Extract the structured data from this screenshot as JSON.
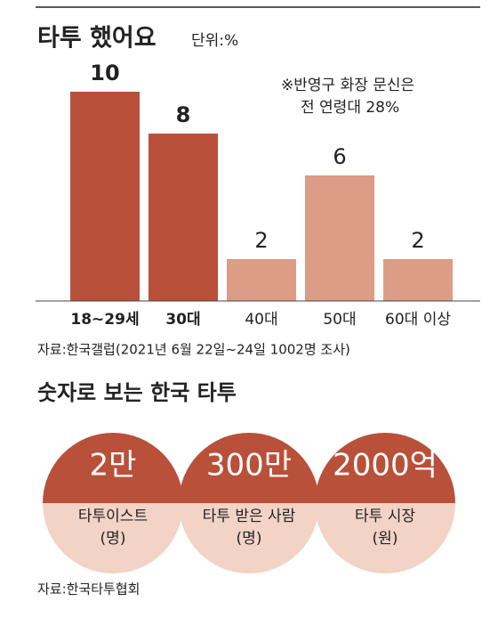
{
  "chart_data": {
    "type": "bar",
    "title": "타투 했어요",
    "unit": "단위:%",
    "annotation": [
      "※반영구 화장 문신은",
      "전 연령대 28%"
    ],
    "categories": [
      "18~29세",
      "30대",
      "40대",
      "50대",
      "60대 이상"
    ],
    "values": [
      10,
      8,
      2,
      6,
      2
    ],
    "colors": [
      "#b9503a",
      "#b9503a",
      "#dc9c85",
      "#dc9c85",
      "#dc9c85"
    ],
    "label_colors": [
      "#b9503a",
      "#b9503a",
      "#d38a72",
      "#d38a72",
      "#d38a72"
    ],
    "ylim": [
      0,
      10
    ],
    "source": "자료:한국갤럽(2021년 6월 22일~24일 1002명 조사)"
  },
  "stats": {
    "title": "숫자로 보는 한국 타투",
    "items": [
      {
        "value": "2만",
        "label": "타투이스트",
        "unit": "(명)"
      },
      {
        "value": "300만",
        "label": "타투 받은 사람",
        "unit": "(명)"
      },
      {
        "value": "2000억",
        "label": "타투 시장",
        "unit": "(원)"
      }
    ],
    "source": "자료:한국타투협회"
  }
}
